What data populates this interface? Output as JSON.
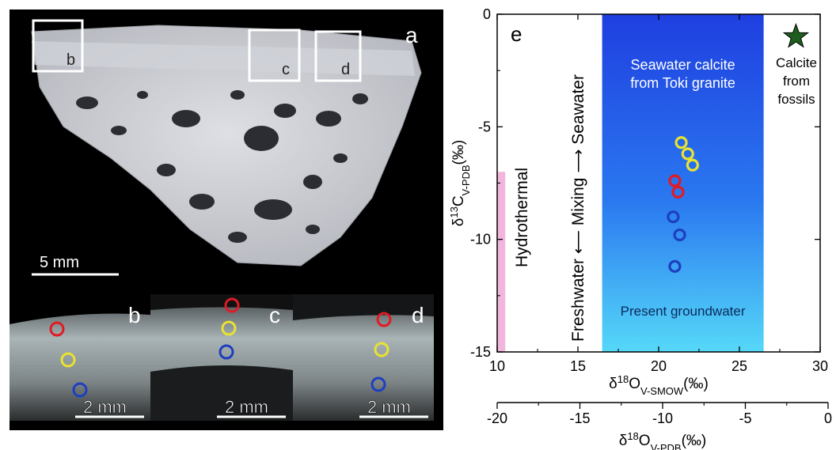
{
  "photo_panels": {
    "main_label": "a",
    "zoom_box_labels": [
      "b",
      "c",
      "d"
    ],
    "inset_labels": [
      "b",
      "c",
      "d"
    ],
    "scale_main": "5 mm",
    "scale_insets": [
      "2 mm",
      "2 mm",
      "2 mm"
    ]
  },
  "chart_data": {
    "type": "scatter",
    "panel_label": "e",
    "xlabel": "δ18OV-SMOW(‰)",
    "xlabel_parts": {
      "main": "δ",
      "sup": "18",
      "base": "O",
      "sub": "V-SMOW",
      "unit": "(‰)"
    },
    "secondary_xlabel": "δ18OV-PDB(‰)",
    "secondary_xlabel_parts": {
      "main": "δ",
      "sup": "18",
      "base": "O",
      "sub": "V-PDB",
      "unit": "(‰)"
    },
    "ylabel": "δ13CV-PDB(‰)",
    "ylabel_parts": {
      "main": "δ",
      "sup": "13",
      "base": "C",
      "sub": "V-PDB",
      "unit": "(‰)"
    },
    "xlim": [
      10,
      30
    ],
    "ylim": [
      -15,
      0
    ],
    "xticks": [
      10,
      15,
      20,
      25,
      30
    ],
    "yticks": [
      0,
      -5,
      -10,
      -15
    ],
    "secondary_xlim": [
      -20,
      0
    ],
    "secondary_xticks": [
      -20,
      -15,
      -10,
      -5,
      0
    ],
    "regions": [
      {
        "label": "Hydrothermal",
        "x_range": [
          10,
          10.5
        ],
        "y_range": [
          -15,
          -7
        ],
        "color": "#f2b6dc"
      },
      {
        "label": "Seawater calcite from Toki granite",
        "x_range": [
          16.5,
          26.5
        ],
        "y_range": [
          -15,
          0
        ],
        "color_top": "#1f3fe0",
        "color_bottom": "#4fd4f7"
      }
    ],
    "region_texts": {
      "hydrothermal": "Hydrothermal",
      "mixing": "Freshwater ⟵ Mixing ⟶ Seawater",
      "seawater_line1": "Seawater calcite",
      "seawater_line2": "from Toki granite",
      "groundwater": "Present groundwater",
      "fossils": [
        "Calcite",
        "from",
        "fossils"
      ]
    },
    "series": [
      {
        "color": "#e8e233",
        "points": [
          {
            "x": 21.4,
            "y": -5.7
          },
          {
            "x": 21.8,
            "y": -6.2
          },
          {
            "x": 22.1,
            "y": -6.7
          }
        ]
      },
      {
        "color": "#e01b24",
        "points": [
          {
            "x": 21.0,
            "y": -7.4
          },
          {
            "x": 21.2,
            "y": -7.9
          }
        ]
      },
      {
        "color": "#1d3fbf",
        "points": [
          {
            "x": 20.9,
            "y": -9.0
          },
          {
            "x": 21.3,
            "y": -9.8
          },
          {
            "x": 21.0,
            "y": -11.2
          }
        ]
      }
    ],
    "fossil_marker": {
      "x": 28.5,
      "y": -1.0,
      "color": "#1e5e1e",
      "shape": "star"
    }
  },
  "colors": {
    "circle_red": "#e01b24",
    "circle_yellow": "#e8e233",
    "circle_blue": "#1d3fbf"
  }
}
